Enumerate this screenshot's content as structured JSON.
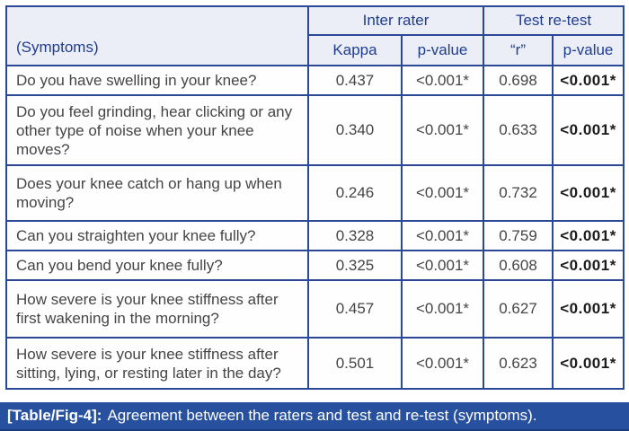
{
  "table": {
    "groups": [
      {
        "label": "Inter rater"
      },
      {
        "label": "Test re-test"
      }
    ],
    "subheaders": [
      "(Symptoms)",
      "Kappa",
      "p-value",
      "“r”",
      "p-value"
    ],
    "rows": [
      {
        "symptom": "Do you have swelling in your knee?",
        "kappa": "0.437",
        "kappa_p": "<0.001*",
        "r": "0.698",
        "r_p": "<0.001*"
      },
      {
        "symptom": "Do you feel grinding, hear clicking or any other type of noise when your knee moves?",
        "kappa": "0.340",
        "kappa_p": "<0.001*",
        "r": "0.633",
        "r_p": "<0.001*"
      },
      {
        "symptom": "Does your knee catch or hang up when moving?",
        "kappa": "0.246",
        "kappa_p": "<0.001*",
        "r": "0.732",
        "r_p": "<0.001*"
      },
      {
        "symptom": "Can you straighten your knee fully?",
        "kappa": "0.328",
        "kappa_p": "<0.001*",
        "r": "0.759",
        "r_p": "<0.001*"
      },
      {
        "symptom": "Can you bend your knee fully?",
        "kappa": "0.325",
        "kappa_p": "<0.001*",
        "r": "0.608",
        "r_p": "<0.001*"
      },
      {
        "symptom": "How severe is your knee stiffness after first wakening in the morning?",
        "kappa": "0.457",
        "kappa_p": "<0.001*",
        "r": "0.627",
        "r_p": "<0.001*"
      },
      {
        "symptom": "How severe is your knee stiffness after sitting, lying, or resting later in the day?",
        "kappa": "0.501",
        "kappa_p": "<0.001*",
        "r": "0.623",
        "r_p": "<0.001*"
      }
    ]
  },
  "caption": {
    "label": "[Table/Fig-4]:",
    "text": "Agreement between the raters and test and re-test (symptoms)."
  },
  "colors": {
    "border": "#2a4896",
    "header_bg": "#eceef7",
    "header_text": "#1e3d8f",
    "body_text": "#454545",
    "bold_value_text": "#1b1b1b",
    "caption_bg": "#27519f",
    "caption_text": "#ffffff"
  }
}
